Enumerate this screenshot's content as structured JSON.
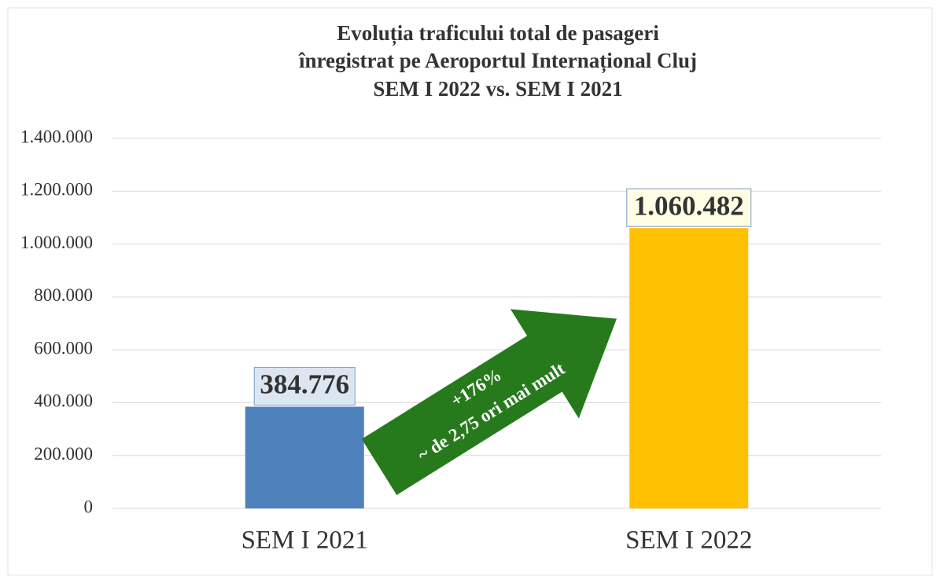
{
  "chart_data": {
    "type": "bar",
    "title": [
      "Evoluția traficului total de pasageri",
      "înregistrat pe Aeroportul Internațional Cluj",
      "SEM I 2022 vs. SEM I 2021"
    ],
    "categories": [
      "SEM I 2021",
      "SEM I 2022"
    ],
    "values": [
      384776,
      1060482
    ],
    "value_labels": [
      "384.776",
      "1.060.482"
    ],
    "colors": [
      "#4f81bd",
      "#ffc000"
    ],
    "ylim": [
      0,
      1400000
    ],
    "yticks": [
      0,
      {
        "value": 200000,
        "label": "200.000"
      },
      {
        "value": 400000,
        "label": "400.000"
      },
      {
        "value": 600000,
        "label": "600.000"
      },
      {
        "value": 800000,
        "label": "800.000"
      },
      {
        "value": 1000000,
        "label": "1.000.000"
      },
      {
        "value": 1200000,
        "label": "1.200.000"
      },
      {
        "value": 1400000,
        "label": "1.400.000"
      }
    ],
    "grid": true,
    "annotation": [
      "+176%",
      "~ de 2,75 ori mai mult"
    ]
  }
}
